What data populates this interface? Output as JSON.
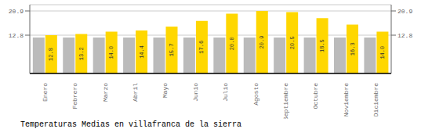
{
  "chart_data": {
    "type": "bar",
    "title": "Temperaturas Medias en villafranca de la sierra",
    "categories": [
      "Enero",
      "Febrero",
      "Marzo",
      "Abril",
      "Mayo",
      "Junio",
      "Julio",
      "Agosto",
      "Septiembre",
      "Octubre",
      "Noviembre",
      "Diciembre"
    ],
    "series": [
      {
        "color": "#BBBBBB",
        "values": [
          12.0,
          12.0,
          12.0,
          12.0,
          12.0,
          12.0,
          12.0,
          12.0,
          12.0,
          12.0,
          12.0,
          12.0
        ]
      },
      {
        "color": "#FFD700",
        "values": [
          12.8,
          13.2,
          14.0,
          14.4,
          15.7,
          17.6,
          20.0,
          20.9,
          20.5,
          18.5,
          16.3,
          14.0
        ],
        "value_labels": [
          "12.8",
          "13.2",
          "14.0",
          "14.4",
          "15.7",
          "17.6",
          "20.0",
          "20.9",
          "20.5",
          "18.5",
          "16.3",
          "14.0"
        ],
        "data_labels": true
      }
    ],
    "ylim": [
      0,
      22.99
    ],
    "yticks": [
      12.8,
      20.9
    ],
    "y2lim": [
      0,
      22.99
    ],
    "y2ticks": [
      12.8,
      20.9
    ],
    "grid": true
  }
}
